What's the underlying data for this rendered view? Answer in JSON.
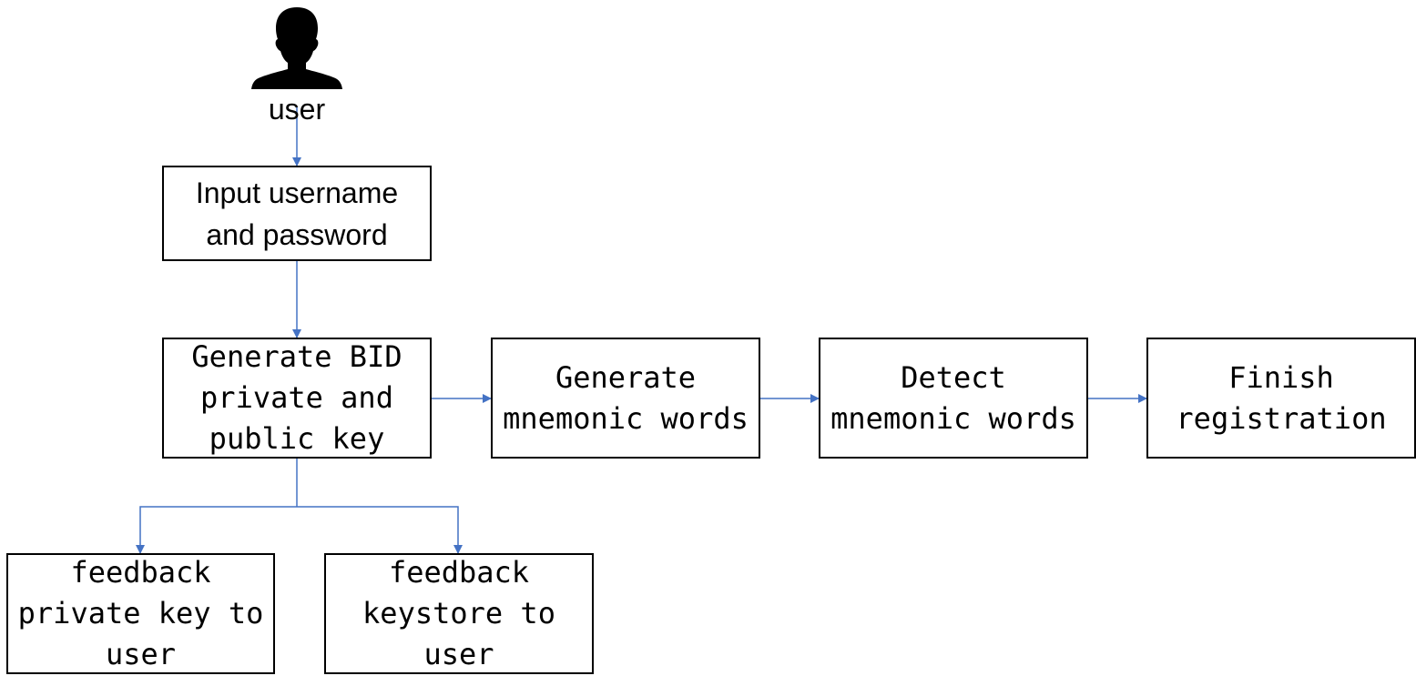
{
  "diagram": {
    "actor": {
      "label": "user",
      "icon": "user-silhouette-icon"
    },
    "boxes": {
      "input_credentials": [
        "Input username",
        "and password"
      ],
      "generate_bid": [
        "Generate BID",
        "private and",
        "public key"
      ],
      "generate_mnemonic": [
        "Generate",
        "mnemonic words"
      ],
      "detect_mnemonic": [
        "Detect",
        "mnemonic words"
      ],
      "finish_registration": [
        "Finish",
        "registration"
      ],
      "feedback_private_key": [
        "feedback",
        "private key to",
        "user"
      ],
      "feedback_keystore": [
        "feedback",
        "keystore to",
        "user"
      ]
    },
    "colors": {
      "connector": "#4472C4",
      "box_border": "#000000",
      "text": "#000000",
      "icon": "#000000"
    }
  }
}
